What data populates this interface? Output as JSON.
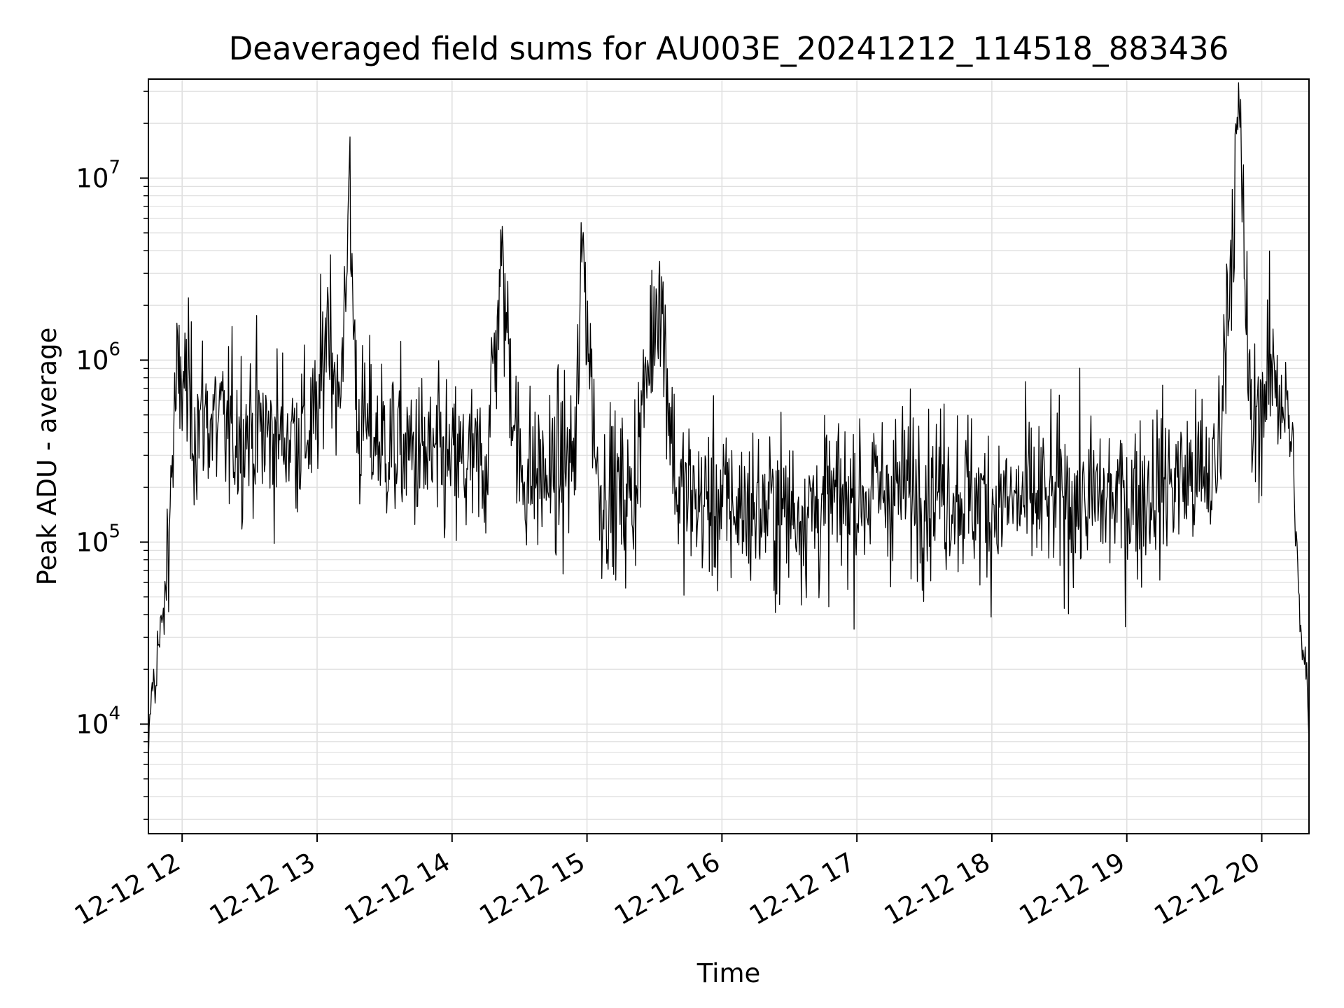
{
  "chart_data": {
    "type": "line",
    "title": "Deaveraged field sums for AU003E_20241212_114518_883436",
    "xlabel": "Time",
    "ylabel": "Peak ADU - average",
    "yscale": "log",
    "grid": true,
    "legend": "none",
    "line_color": "#000000",
    "grid_color": "#e0e0e0",
    "xlim": [
      "2024-12-12 11:45",
      "2024-12-12 20:21"
    ],
    "ylim": [
      2500,
      35000000
    ],
    "x_ticks": [
      {
        "t": "2024-12-12 12:00",
        "label": "12-12 12"
      },
      {
        "t": "2024-12-12 13:00",
        "label": "12-12 13"
      },
      {
        "t": "2024-12-12 14:00",
        "label": "12-12 14"
      },
      {
        "t": "2024-12-12 15:00",
        "label": "12-12 15"
      },
      {
        "t": "2024-12-12 16:00",
        "label": "12-12 16"
      },
      {
        "t": "2024-12-12 17:00",
        "label": "12-12 17"
      },
      {
        "t": "2024-12-12 18:00",
        "label": "12-12 18"
      },
      {
        "t": "2024-12-12 19:00",
        "label": "12-12 19"
      },
      {
        "t": "2024-12-12 20:00",
        "label": "12-12 20"
      }
    ],
    "y_ticks": [
      {
        "value": 10000,
        "base": "10",
        "exp": "4"
      },
      {
        "value": 100000,
        "base": "10",
        "exp": "5"
      },
      {
        "value": 1000000,
        "base": "10",
        "exp": "6"
      },
      {
        "value": 10000000,
        "base": "10",
        "exp": "7"
      }
    ],
    "series": [
      {
        "points": [
          [
            "2024-12-12 11:45",
            6000
          ],
          [
            "2024-12-12 11:46",
            12000
          ],
          [
            "2024-12-12 11:47",
            18000
          ],
          [
            "2024-12-12 11:48",
            14000
          ],
          [
            "2024-12-12 11:49",
            30000
          ],
          [
            "2024-12-12 11:50",
            25000
          ],
          [
            "2024-12-12 11:51",
            40000
          ],
          [
            "2024-12-12 11:52",
            35000
          ],
          [
            "2024-12-12 11:53",
            80000
          ],
          [
            "2024-12-12 11:54",
            120000
          ],
          [
            "2024-12-12 11:55",
            200000
          ],
          [
            "2024-12-12 11:56",
            350000
          ],
          [
            "2024-12-12 11:57",
            550000
          ],
          [
            "2024-12-12 11:58",
            700000
          ],
          [
            "2024-12-12 11:59",
            600000
          ],
          [
            "2024-12-12 12:00",
            900000
          ],
          [
            "2024-12-12 12:05",
            450000
          ],
          [
            "2024-12-12 12:10",
            500000
          ],
          [
            "2024-12-12 12:20",
            400000
          ],
          [
            "2024-12-12 12:30",
            420000
          ],
          [
            "2024-12-12 12:40",
            380000
          ],
          [
            "2024-12-12 12:50",
            400000
          ],
          [
            "2024-12-12 13:00",
            420000
          ],
          [
            "2024-12-12 13:05",
            2050000
          ],
          [
            "2024-12-12 13:10",
            450000
          ],
          [
            "2024-12-12 13:14",
            8600000
          ],
          [
            "2024-12-12 13:18",
            450000
          ],
          [
            "2024-12-12 13:30",
            350000
          ],
          [
            "2024-12-12 13:45",
            300000
          ],
          [
            "2024-12-12 14:00",
            260000
          ],
          [
            "2024-12-12 14:15",
            260000
          ],
          [
            "2024-12-12 14:22",
            3300000
          ],
          [
            "2024-12-12 14:30",
            240000
          ],
          [
            "2024-12-12 14:45",
            230000
          ],
          [
            "2024-12-12 14:55",
            300000
          ],
          [
            "2024-12-12 14:58",
            4500000
          ],
          [
            "2024-12-12 15:05",
            200000
          ],
          [
            "2024-12-12 15:20",
            170000
          ],
          [
            "2024-12-12 15:32",
            2900000
          ],
          [
            "2024-12-12 15:40",
            180000
          ],
          [
            "2024-12-12 16:00",
            160000
          ],
          [
            "2024-12-12 16:20",
            150000
          ],
          [
            "2024-12-12 16:40",
            150000
          ],
          [
            "2024-12-12 17:00",
            180000
          ],
          [
            "2024-12-12 17:20",
            200000
          ],
          [
            "2024-12-12 17:40",
            200000
          ],
          [
            "2024-12-12 18:00",
            160000
          ],
          [
            "2024-12-12 18:20",
            170000
          ],
          [
            "2024-12-12 18:40",
            170000
          ],
          [
            "2024-12-12 19:00",
            170000
          ],
          [
            "2024-12-12 19:20",
            220000
          ],
          [
            "2024-12-12 19:40",
            230000
          ],
          [
            "2024-12-12 19:50",
            23000000
          ],
          [
            "2024-12-12 19:55",
            400000
          ],
          [
            "2024-12-12 20:00",
            600000
          ],
          [
            "2024-12-12 20:05",
            900000
          ],
          [
            "2024-12-12 20:10",
            600000
          ],
          [
            "2024-12-12 20:14",
            300000
          ],
          [
            "2024-12-12 20:16",
            60000
          ],
          [
            "2024-12-12 20:18",
            25000
          ],
          [
            "2024-12-12 20:20",
            18000
          ],
          [
            "2024-12-12 20:21",
            8000
          ]
        ]
      }
    ]
  }
}
